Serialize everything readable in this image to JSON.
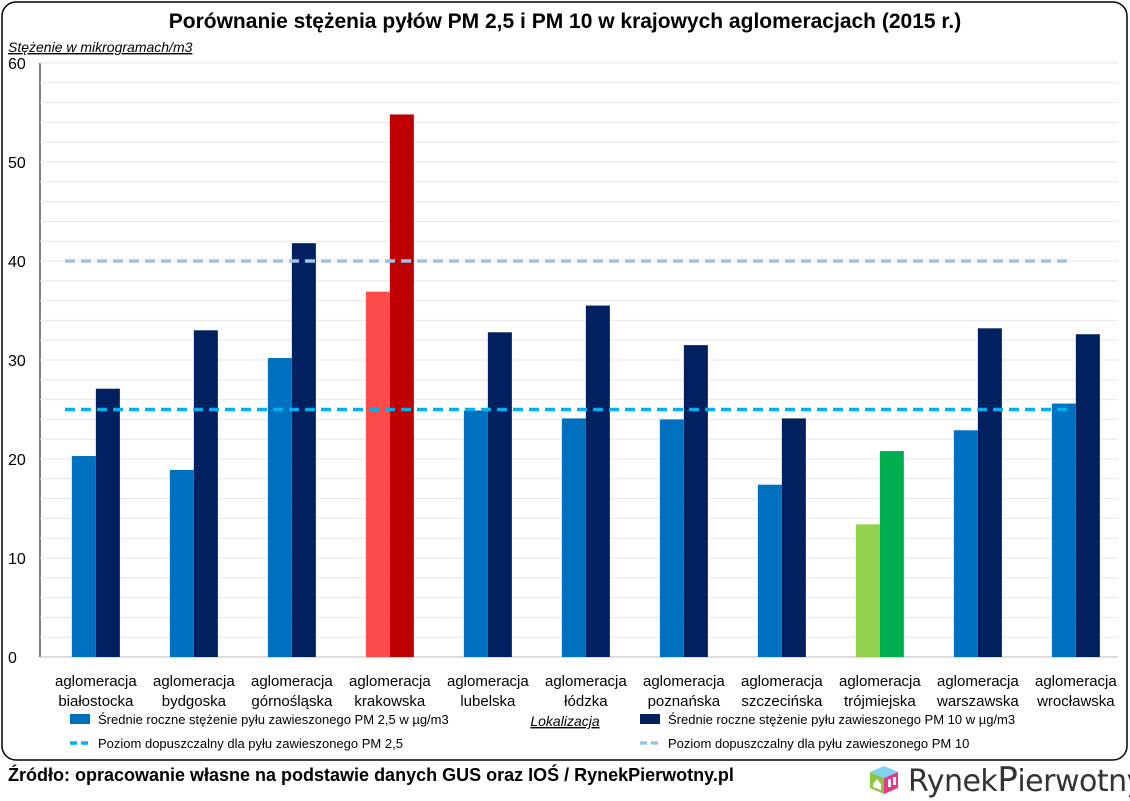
{
  "chart_data": {
    "type": "bar",
    "title": "Porównanie stężenia pyłów PM 2,5 i PM 10 w krajowych aglomeracjach (2015 r.)",
    "ylabel": "Stężenie w mikrogramach/m3",
    "xlabel": "Lokalizacja",
    "ylim": [
      0,
      60
    ],
    "yticks": [
      0,
      10,
      20,
      30,
      40,
      50,
      60
    ],
    "grid": true,
    "legend_placement": "bottom",
    "categories": [
      [
        "aglomeracja",
        "białostocka"
      ],
      [
        "aglomeracja",
        "bydgoska"
      ],
      [
        "aglomeracja",
        "górnośląska"
      ],
      [
        "aglomeracja",
        "krakowska"
      ],
      [
        "aglomeracja",
        "lubelska"
      ],
      [
        "aglomeracja",
        "łódzka"
      ],
      [
        "aglomeracja",
        "poznańska"
      ],
      [
        "aglomeracja",
        "szczecińska"
      ],
      [
        "aglomeracja",
        "trójmiejska"
      ],
      [
        "aglomeracja",
        "warszawska"
      ],
      [
        "aglomeracja",
        "wrocławska"
      ]
    ],
    "series": [
      {
        "name": "Średnie roczne stężenie pyłu zawieszonego PM 2,5 w µg/m3",
        "color": "#0070C0",
        "values": [
          20.3,
          18.9,
          30.2,
          36.9,
          24.9,
          24.1,
          24.0,
          17.4,
          13.4,
          22.9,
          25.6
        ]
      },
      {
        "name": "Średnie roczne stężenie pyłu zawieszonego PM 10 w µg/m3",
        "color": "#002060",
        "values": [
          27.1,
          33.0,
          41.8,
          54.8,
          32.8,
          35.5,
          31.5,
          24.1,
          20.8,
          33.2,
          32.6
        ]
      }
    ],
    "highlight_colors": {
      "krakowska": [
        "#FF4B4B",
        "#C00000"
      ],
      "trójmiejska": [
        "#92D050",
        "#00B050"
      ]
    },
    "reference_lines": [
      {
        "name": "Poziom dopuszczalny dla pyłu zawieszonego PM 2,5",
        "value": 25,
        "color": "#00B0F0",
        "style": "dashed"
      },
      {
        "name": "Poziom dopuszczalny dla pyłu zawieszonego PM 10",
        "value": 40,
        "color": "#9DC3E6",
        "style": "dashed"
      }
    ]
  },
  "footer": {
    "source": "Źródło: opracowanie własne na podstawie danych GUS oraz IOŚ / RynekPierwotny.pl"
  },
  "logo": {
    "text": "RynekPierwotny"
  }
}
